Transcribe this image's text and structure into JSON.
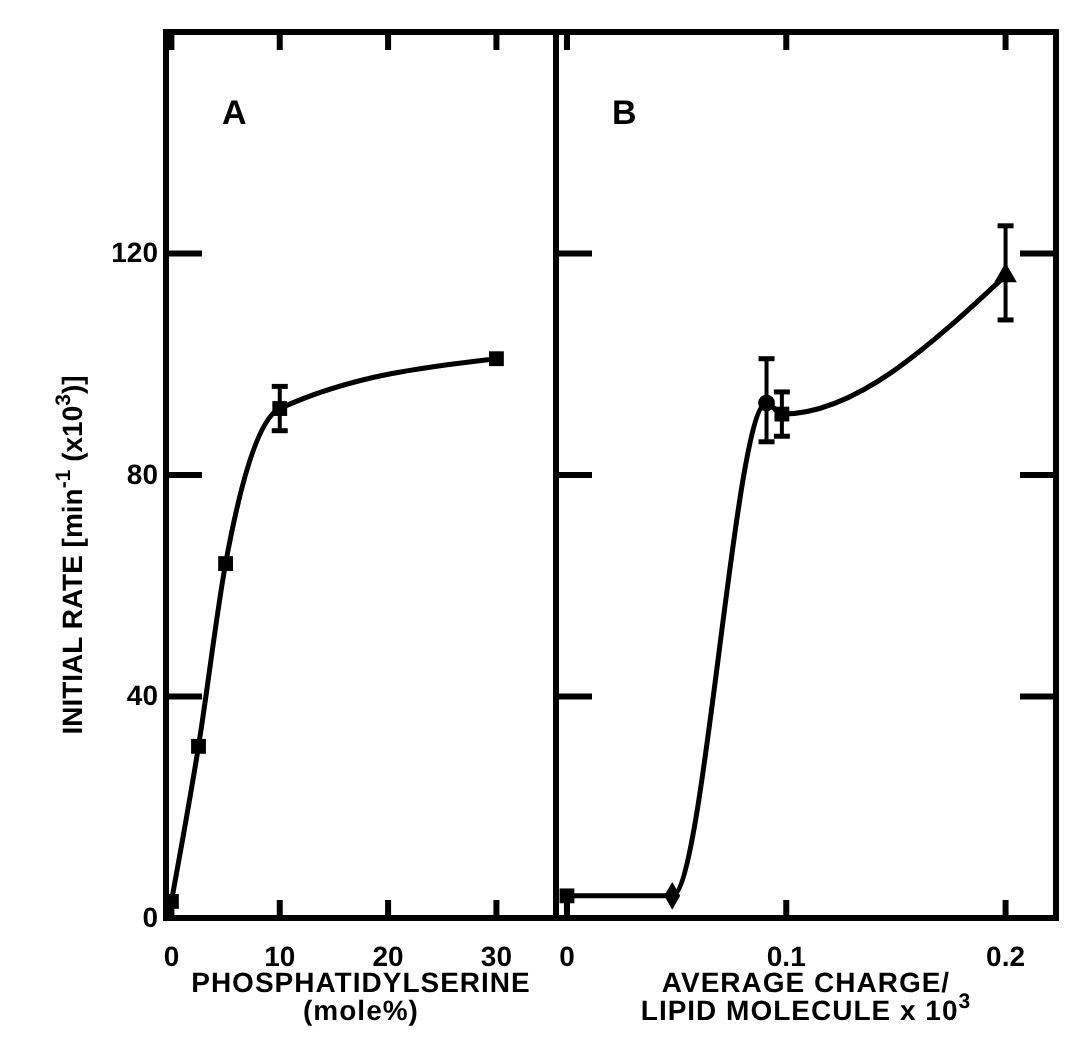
{
  "chart_data": [
    {
      "type": "line",
      "title": "A",
      "xlabel": "PHOSPHATIDYLSERINE\n(mole%)",
      "ylabel": "INITIAL RATE [min$^{-1}$ (x10$^{3}$)]",
      "xlim": [
        -0.5,
        35.5
      ],
      "xticks": [
        0,
        10,
        20,
        30
      ],
      "ylim": [
        0,
        160
      ],
      "yticks": [
        0,
        40,
        80,
        120
      ],
      "grid": false,
      "series": [
        {
          "color": "#000000",
          "x": [
            0,
            2.5,
            5,
            10,
            30
          ],
          "values": [
            3,
            31,
            64,
            92,
            101
          ],
          "errors": [
            null,
            null,
            null,
            4,
            null
          ],
          "marker": "square"
        }
      ]
    },
    {
      "type": "line",
      "title": "B",
      "xlabel": "AVERAGE CHARGE/\nLIPID MOLECULE x 10$^{3}$",
      "tick_labels": "x",
      "xlim": [
        -0.005,
        0.223
      ],
      "xticks": [
        0,
        0.1,
        0.2
      ],
      "ylim": [
        0,
        160
      ],
      "yticks": [
        0,
        40,
        80,
        120
      ],
      "grid": false,
      "series": [
        {
          "color": "#000000",
          "x": [
            0,
            0.048,
            0.091,
            0.098,
            0.2
          ],
          "values": [
            4,
            4,
            93,
            91,
            116
          ],
          "marker": "none"
        },
        {
          "type": "scatter",
          "color": "#000000",
          "x": [
            0,
            0.098
          ],
          "values": [
            4,
            91
          ],
          "errors": [
            null,
            4
          ],
          "marker": "square"
        },
        {
          "type": "scatter",
          "color": "#000000",
          "x": [
            0.048
          ],
          "values": [
            4
          ],
          "marker": "diamond"
        },
        {
          "type": "scatter",
          "color": "#000000",
          "x": [
            0.091
          ],
          "values": [
            93
          ],
          "errors": [
            [
              86,
              101
            ]
          ],
          "marker": "circle"
        },
        {
          "type": "scatter",
          "color": "#000000",
          "x": [
            0.2
          ],
          "values": [
            116
          ],
          "errors": [
            [
              108,
              125
            ]
          ],
          "marker": "triangle"
        }
      ]
    }
  ]
}
